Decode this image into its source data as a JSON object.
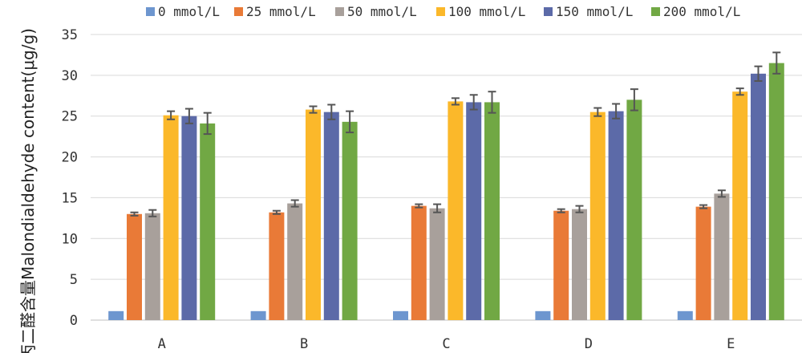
{
  "chart_data": {
    "type": "bar",
    "title": "",
    "xlabel": "",
    "ylabel": "丙二醛含量Malondialdehyde content(μg/g)",
    "ylim": [
      0,
      35
    ],
    "yticks": [
      0,
      5,
      10,
      15,
      20,
      25,
      30,
      35
    ],
    "grid": true,
    "legend_position": "top",
    "categories": [
      "A",
      "B",
      "C",
      "D",
      "E"
    ],
    "series": [
      {
        "name": "0 mmol/L",
        "color": "#6d96cf",
        "values": [
          1.1,
          1.1,
          1.1,
          1.1,
          1.1
        ],
        "errors": [
          0,
          0,
          0,
          0,
          0
        ]
      },
      {
        "name": "25 mmol/L",
        "color": "#e97a37",
        "values": [
          13.0,
          13.2,
          14.0,
          13.4,
          13.9
        ],
        "errors": [
          0.2,
          0.2,
          0.2,
          0.2,
          0.2
        ]
      },
      {
        "name": "50 mmol/L",
        "color": "#a8a09b",
        "values": [
          13.1,
          14.3,
          13.7,
          13.6,
          15.5
        ],
        "errors": [
          0.4,
          0.4,
          0.5,
          0.4,
          0.4
        ]
      },
      {
        "name": "100 mmol/L",
        "color": "#fbb82a",
        "values": [
          25.1,
          25.8,
          26.8,
          25.5,
          28.0
        ],
        "errors": [
          0.5,
          0.4,
          0.4,
          0.5,
          0.4
        ]
      },
      {
        "name": "150 mmol/L",
        "color": "#5c6aa8",
        "values": [
          25.0,
          25.5,
          26.7,
          25.6,
          30.2
        ],
        "errors": [
          0.9,
          0.9,
          0.9,
          0.9,
          0.9
        ]
      },
      {
        "name": "200 mmol/L",
        "color": "#71a844",
        "values": [
          24.1,
          24.3,
          26.7,
          27.0,
          31.5
        ],
        "errors": [
          1.3,
          1.3,
          1.3,
          1.3,
          1.3
        ]
      }
    ]
  }
}
